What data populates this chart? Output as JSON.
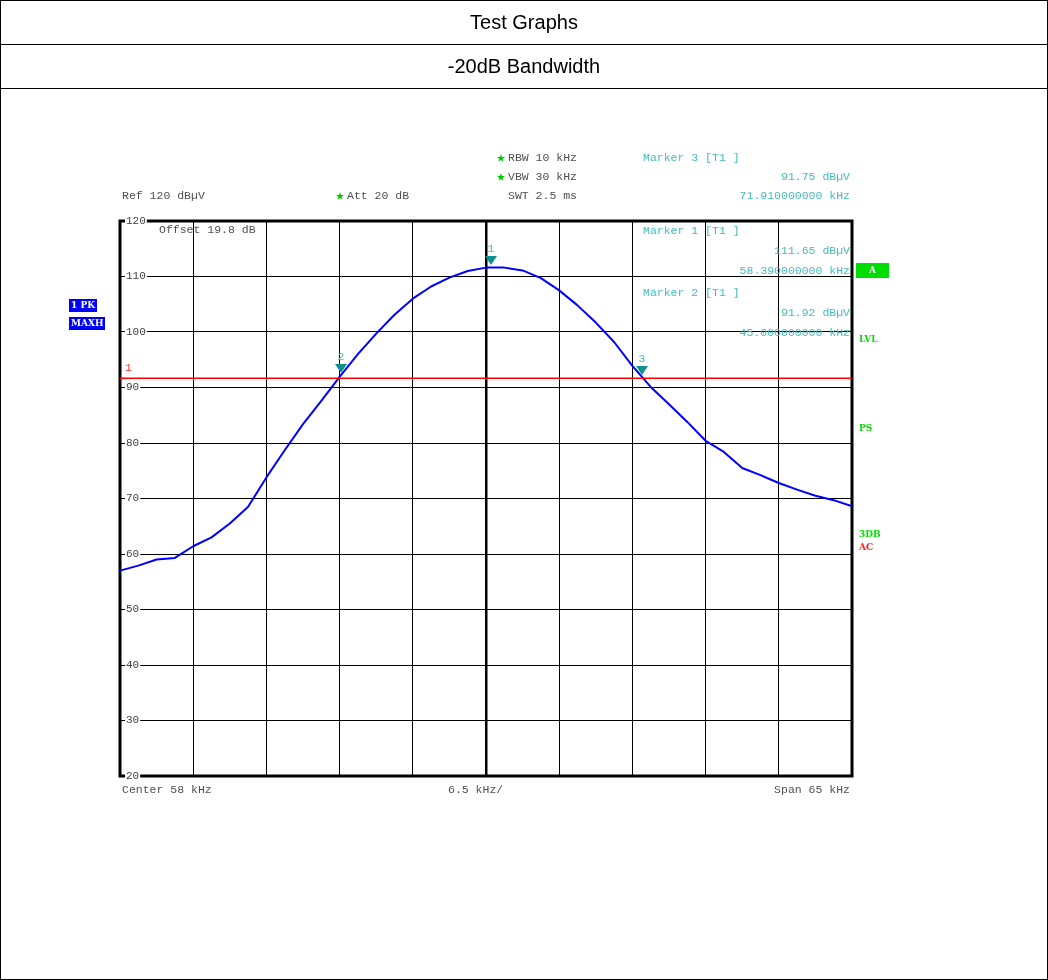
{
  "chart_data": {
    "type": "line",
    "title": "Test Graphs",
    "subtitle": "-20dB Bandwidth",
    "categories": [
      null,
      null,
      null,
      null,
      null,
      null,
      null,
      null,
      null,
      null,
      null,
      null,
      null,
      null,
      null,
      null,
      null,
      null,
      null,
      null,
      null,
      null,
      null,
      null,
      null,
      null,
      null,
      null,
      null,
      null,
      null,
      null,
      null,
      null,
      null,
      null,
      null,
      null,
      null,
      null,
      null
    ],
    "series": [
      {
        "color": "#0000ff",
        "values": [
          57.0,
          57.9,
          59.0,
          59.3,
          61.4,
          63.0,
          65.5,
          68.5,
          73.8,
          78.7,
          83.4,
          87.6,
          91.92,
          96.0,
          99.7,
          103.1,
          106.0,
          108.2,
          109.8,
          111.0,
          111.6,
          111.6,
          111.1,
          109.7,
          107.5,
          104.8,
          101.7,
          98.2,
          93.9,
          90.1,
          87.0,
          83.8,
          80.4,
          78.4,
          75.5,
          74.2,
          72.8,
          71.6,
          70.5,
          69.7,
          68.6
        ]
      }
    ],
    "ylim": [
      20,
      120
    ],
    "yticks": [
      20,
      30,
      40,
      50,
      60,
      70,
      80,
      90,
      100,
      110,
      120
    ],
    "tick_labels": "y",
    "grid": true,
    "legend": false,
    "marker": "none",
    "line_style": "solid",
    "ref_lines": [
      {
        "axis": "y",
        "value": 91.65,
        "color": "#ff0000"
      }
    ],
    "annotations": [
      "Ref 120 dBµV",
      "Att 20 dB",
      "RBW 10 kHz",
      "VBW 30 kHz",
      "SWT 2.5 ms",
      "Marker 3 [T1 ]",
      "91.75 dBµV",
      "71.910000000 kHz",
      "Offset 19.8 dB",
      "Marker 1 [T1 ]",
      "111.65 dBµV",
      "58.390000000 kHz",
      "Marker 2 [T1 ]",
      "91.92 dBµV",
      "45.000000000 kHz",
      "1 PK",
      "MAXH",
      "A",
      "LVL",
      "PS",
      "3DB",
      "AC",
      "Center 58 kHz",
      "6.5 kHz/",
      "Span 65 kHz",
      "1",
      "1",
      "2",
      "3"
    ]
  }
}
